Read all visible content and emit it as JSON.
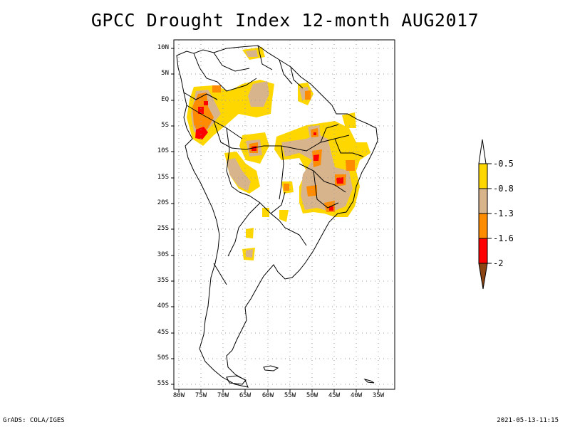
{
  "title": "GPCC Drought Index 12-month AUG2017",
  "footer_left": "GrADS: COLA/IGES",
  "footer_right": "2021-05-13-11:15",
  "map": {
    "lat_labels": [
      "10N",
      "5N",
      "EQ",
      "5S",
      "10S",
      "15S",
      "20S",
      "25S",
      "30S",
      "35S",
      "40S",
      "45S",
      "50S",
      "55S"
    ],
    "lon_labels": [
      "80W",
      "75W",
      "70W",
      "65W",
      "60W",
      "55W",
      "50W",
      "45W",
      "40W",
      "35W"
    ],
    "lat_range": [
      11.5,
      -55.5
    ],
    "lon_range": [
      -81,
      -32
    ]
  },
  "legend": {
    "labels": [
      "-0.5",
      "-0.8",
      "-1.3",
      "-1.6",
      "-2"
    ],
    "colors": {
      "white": "#ffffff",
      "yellow": "#ffd700",
      "tan": "#d8b48c",
      "orange": "#ff8c00",
      "red": "#ff0000",
      "brown": "#8b4513"
    }
  }
}
